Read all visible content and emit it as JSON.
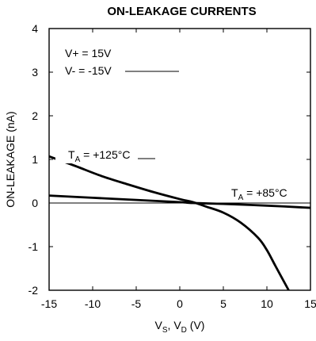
{
  "chart_data": {
    "type": "line",
    "title": "ON-LEAKAGE CURRENTS",
    "xlabel": {
      "main": "V",
      "sub1": "S",
      "mid": ", V",
      "sub2": "D",
      "unit": " (V)"
    },
    "ylabel": "ON-LEAKAGE (nA)",
    "xlim": [
      -15,
      15
    ],
    "ylim": [
      -2,
      4
    ],
    "xticks": [
      -15,
      -10,
      -5,
      0,
      5,
      10,
      15
    ],
    "yticks": [
      -2,
      -1,
      0,
      1,
      2,
      3,
      4
    ],
    "grid": false,
    "annotations": {
      "supply_pos": "V+ = 15V",
      "supply_neg": "V- = -15V",
      "label_125": {
        "main": "T",
        "sub": "A",
        "rest": " = +125°C"
      },
      "label_85": {
        "main": "T",
        "sub": "A",
        "rest": " = +85°C"
      }
    },
    "series": [
      {
        "name": "TA = +125°C",
        "color": "#000000",
        "x": [
          -15,
          -12,
          -9,
          -6,
          -3,
          0,
          1.5,
          3,
          5,
          7,
          9,
          10,
          11,
          12.5
        ],
        "y": [
          1.07,
          0.85,
          0.62,
          0.43,
          0.25,
          0.09,
          0.02,
          -0.08,
          -0.22,
          -0.45,
          -0.8,
          -1.08,
          -1.45,
          -2.0
        ]
      },
      {
        "name": "TA = +85°C",
        "color": "#000000",
        "x": [
          -15,
          -10,
          -5,
          0,
          1.5,
          5,
          10,
          15
        ],
        "y": [
          0.17,
          0.12,
          0.07,
          0.02,
          0.0,
          -0.02,
          -0.06,
          -0.11
        ]
      }
    ]
  }
}
